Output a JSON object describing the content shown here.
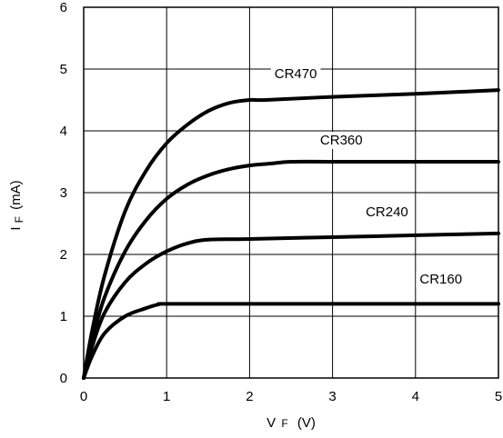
{
  "chart_data": {
    "type": "line",
    "xlabel_main": "V",
    "xlabel_sub": "F",
    "xlabel_unit": "(V)",
    "ylabel_main": "I",
    "ylabel_sub": "F",
    "ylabel_unit": "(mA)",
    "xlim": [
      0,
      5
    ],
    "ylim": [
      0,
      6
    ],
    "xticks": [
      "0",
      "1",
      "2",
      "3",
      "4",
      "5"
    ],
    "yticks": [
      "0",
      "1",
      "2",
      "3",
      "4",
      "5",
      "6"
    ],
    "grid": true,
    "series": [
      {
        "name": "CR470",
        "x": [
          0,
          0.1,
          0.25,
          0.5,
          0.75,
          1.0,
          1.25,
          1.5,
          1.75,
          2.0,
          2.2,
          3.0,
          4.0,
          5.0
        ],
        "y": [
          0,
          0.75,
          1.65,
          2.7,
          3.35,
          3.8,
          4.1,
          4.32,
          4.45,
          4.5,
          4.5,
          4.55,
          4.6,
          4.66
        ],
        "label_at": [
          2.3,
          4.85
        ]
      },
      {
        "name": "CR360",
        "x": [
          0,
          0.1,
          0.25,
          0.5,
          0.75,
          1.0,
          1.25,
          1.5,
          1.75,
          2.0,
          2.25,
          2.5,
          3.0,
          4.0,
          5.0
        ],
        "y": [
          0,
          0.6,
          1.3,
          2.05,
          2.55,
          2.9,
          3.13,
          3.28,
          3.38,
          3.44,
          3.47,
          3.5,
          3.5,
          3.5,
          3.5
        ],
        "label_at": [
          2.85,
          3.78
        ]
      },
      {
        "name": "CR240",
        "x": [
          0,
          0.1,
          0.25,
          0.5,
          0.75,
          1.0,
          1.25,
          1.5,
          2.0,
          3.0,
          4.0,
          5.0
        ],
        "y": [
          0,
          0.5,
          1.05,
          1.55,
          1.85,
          2.05,
          2.18,
          2.24,
          2.25,
          2.28,
          2.31,
          2.34
        ],
        "label_at": [
          3.4,
          2.62
        ]
      },
      {
        "name": "CR160",
        "x": [
          0,
          0.1,
          0.25,
          0.5,
          0.75,
          0.9,
          1.0,
          2.0,
          3.0,
          4.0,
          5.0
        ],
        "y": [
          0,
          0.35,
          0.72,
          1.0,
          1.13,
          1.19,
          1.2,
          1.2,
          1.2,
          1.2,
          1.2
        ],
        "label_at": [
          4.05,
          1.53
        ]
      }
    ]
  }
}
